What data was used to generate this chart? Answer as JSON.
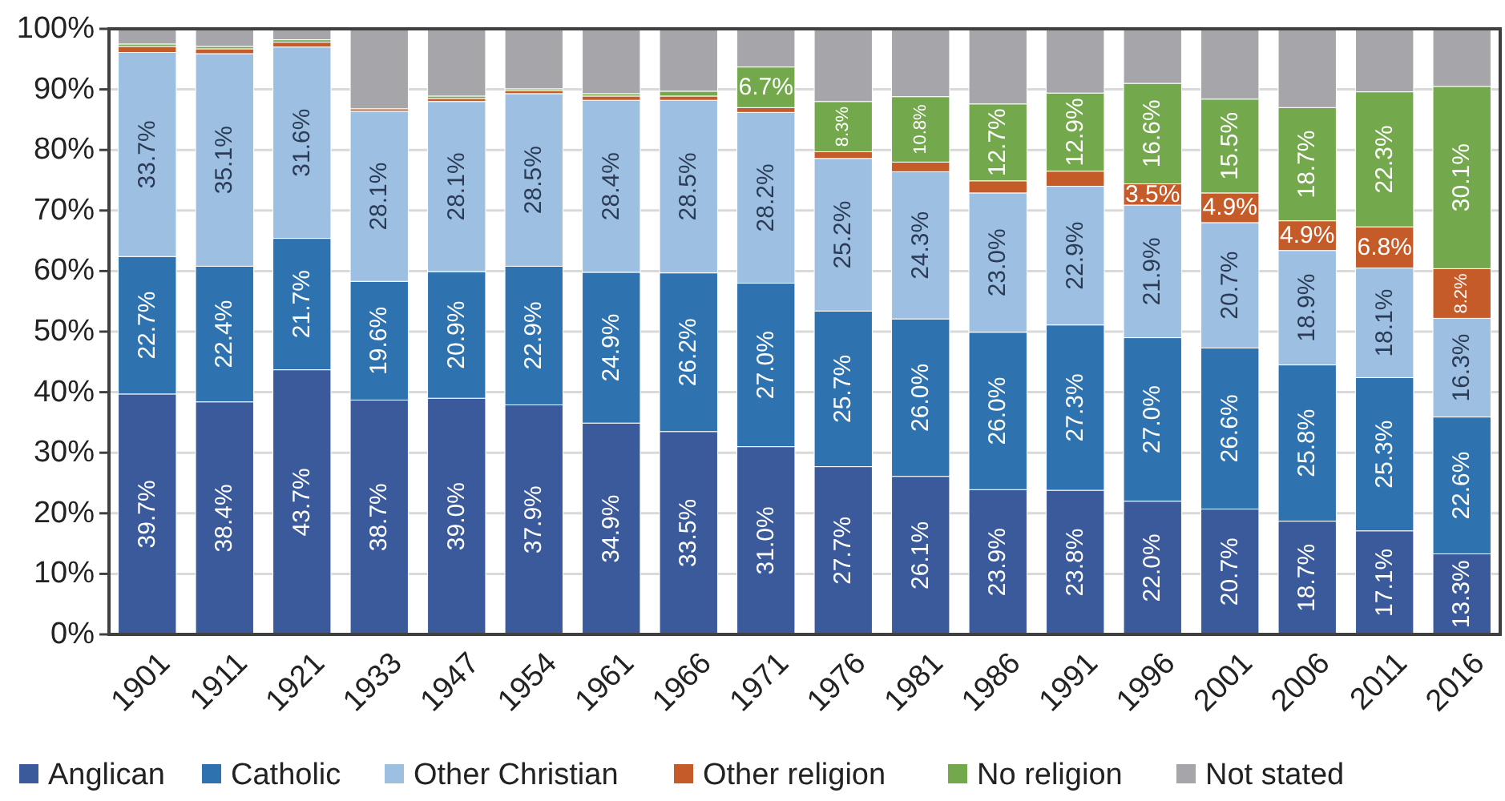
{
  "chart_data": {
    "type": "bar",
    "stacked": true,
    "categories": [
      "1901",
      "1911",
      "1921",
      "1933",
      "1947",
      "1954",
      "1961",
      "1966",
      "1971",
      "1976",
      "1981",
      "1986",
      "1991",
      "1996",
      "2001",
      "2006",
      "2011",
      "2016"
    ],
    "ylim": [
      0,
      100
    ],
    "yticks": [
      {
        "value": 0,
        "label": "0%"
      },
      {
        "value": 10,
        "label": "10%"
      },
      {
        "value": 20,
        "label": "20%"
      },
      {
        "value": 30,
        "label": "30%"
      },
      {
        "value": 40,
        "label": "40%"
      },
      {
        "value": 50,
        "label": "50%"
      },
      {
        "value": 60,
        "label": "60%"
      },
      {
        "value": 70,
        "label": "70%"
      },
      {
        "value": 80,
        "label": "80%"
      },
      {
        "value": 90,
        "label": "90%"
      },
      {
        "value": 100,
        "label": "100%"
      }
    ],
    "grid": "y",
    "legend": "bottom",
    "series": [
      {
        "name": "Anglican",
        "color": "#3b5a9b",
        "values": [
          39.7,
          38.4,
          43.7,
          38.7,
          39.0,
          37.9,
          34.9,
          33.5,
          31.0,
          27.7,
          26.1,
          23.9,
          23.8,
          22.0,
          20.7,
          18.7,
          17.1,
          13.3
        ],
        "value_labels": [
          "39.7%",
          "38.4%",
          "43.7%",
          "38.7%",
          "39.0%",
          "37.9%",
          "34.9%",
          "33.5%",
          "31.0%",
          "27.7%",
          "26.1%",
          "23.9%",
          "23.8%",
          "22.0%",
          "20.7%",
          "18.7%",
          "17.1%",
          "13.3%"
        ]
      },
      {
        "name": "Catholic",
        "color": "#2e72b0",
        "values": [
          22.7,
          22.4,
          21.7,
          19.6,
          20.9,
          22.9,
          24.9,
          26.2,
          27.0,
          25.7,
          26.0,
          26.0,
          27.3,
          27.0,
          26.6,
          25.8,
          25.3,
          22.6
        ],
        "value_labels": [
          "22.7%",
          "22.4%",
          "21.7%",
          "19.6%",
          "20.9%",
          "22.9%",
          "24.9%",
          "26.2%",
          "27.0%",
          "25.7%",
          "26.0%",
          "26.0%",
          "27.3%",
          "27.0%",
          "26.6%",
          "25.8%",
          "25.3%",
          "22.6%"
        ]
      },
      {
        "name": "Other Christian",
        "color": "#9dc0e2",
        "values": [
          33.7,
          35.1,
          31.6,
          28.1,
          28.1,
          28.5,
          28.4,
          28.5,
          28.2,
          25.2,
          24.3,
          23.0,
          22.9,
          21.9,
          20.7,
          18.9,
          18.1,
          16.3
        ],
        "value_labels": [
          "33.7%",
          "35.1%",
          "31.6%",
          "28.1%",
          "28.1%",
          "28.5%",
          "28.4%",
          "28.5%",
          "28.2%",
          "25.2%",
          "24.3%",
          "23.0%",
          "22.9%",
          "21.9%",
          "20.7%",
          "18.9%",
          "18.1%",
          "16.3%"
        ]
      },
      {
        "name": "Other religion",
        "color": "#c55b28",
        "values": [
          1.0,
          0.8,
          0.8,
          0.4,
          0.5,
          0.5,
          0.7,
          0.7,
          0.8,
          1.1,
          1.6,
          2.0,
          2.5,
          3.5,
          4.9,
          4.9,
          6.8,
          8.2
        ],
        "value_labels": [
          null,
          null,
          null,
          null,
          null,
          null,
          null,
          null,
          null,
          null,
          null,
          null,
          null,
          "3.5%",
          "4.9%",
          "4.9%",
          "6.8%",
          "8.2%"
        ]
      },
      {
        "name": "No religion",
        "color": "#74a84c",
        "values": [
          0.4,
          0.4,
          0.4,
          null,
          0.4,
          0.3,
          0.4,
          0.8,
          6.7,
          8.3,
          10.8,
          12.7,
          12.9,
          16.6,
          15.5,
          18.7,
          22.3,
          30.1
        ],
        "value_labels": [
          null,
          null,
          null,
          null,
          null,
          null,
          null,
          null,
          "6.7%",
          "8.3%",
          "10.8%",
          "12.7%",
          "12.9%",
          "16.6%",
          "15.5%",
          "18.7%",
          "22.3%",
          "30.1%"
        ]
      },
      {
        "name": "Not stated",
        "color": "#a6a6aa",
        "values": [
          2.5,
          2.9,
          1.8,
          13.2,
          11.1,
          9.9,
          10.7,
          10.3,
          6.3,
          12.0,
          11.2,
          12.4,
          10.6,
          9.0,
          11.6,
          13.0,
          10.4,
          9.5
        ]
      }
    ]
  }
}
